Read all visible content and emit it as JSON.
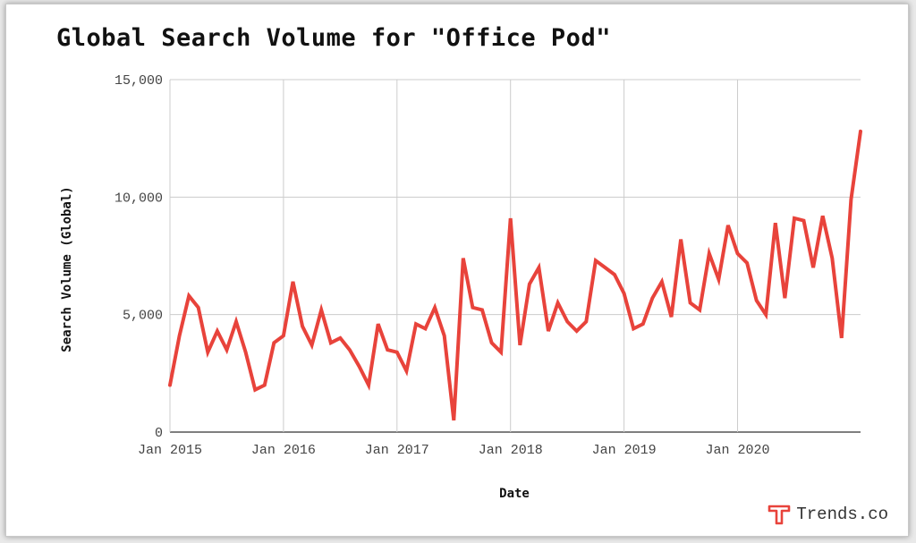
{
  "chart_data": {
    "type": "line",
    "title": "Global Search Volume for \"Office Pod\"",
    "xlabel": "Date",
    "ylabel": "Search Volume (Global)",
    "ylim": [
      0,
      15000
    ],
    "yticks": [
      0,
      5000,
      10000,
      15000
    ],
    "ytick_labels": [
      "0",
      "5,000",
      "10,000",
      "15,000"
    ],
    "xlim": [
      "2015-01",
      "2021-02"
    ],
    "xticks": [
      "2015-01",
      "2016-01",
      "2017-01",
      "2018-01",
      "2019-01",
      "2020-01"
    ],
    "xtick_labels": [
      "Jan 2015",
      "Jan 2016",
      "Jan 2017",
      "Jan 2018",
      "Jan 2019",
      "Jan 2020"
    ],
    "grid": true,
    "line_color": "#e8433b",
    "x": [
      "2015-01",
      "2015-02",
      "2015-03",
      "2015-04",
      "2015-05",
      "2015-06",
      "2015-07",
      "2015-08",
      "2015-09",
      "2015-10",
      "2015-11",
      "2015-12",
      "2016-01",
      "2016-02",
      "2016-03",
      "2016-04",
      "2016-05",
      "2016-06",
      "2016-07",
      "2016-08",
      "2016-09",
      "2016-10",
      "2016-11",
      "2016-12",
      "2017-01",
      "2017-02",
      "2017-03",
      "2017-04",
      "2017-05",
      "2017-06",
      "2017-07",
      "2017-08",
      "2017-09",
      "2017-10",
      "2017-11",
      "2017-12",
      "2018-01",
      "2018-02",
      "2018-03",
      "2018-04",
      "2018-05",
      "2018-06",
      "2018-07",
      "2018-08",
      "2018-09",
      "2018-10",
      "2018-11",
      "2018-12",
      "2019-01",
      "2019-02",
      "2019-03",
      "2019-04",
      "2019-05",
      "2019-06",
      "2019-07",
      "2019-08",
      "2019-09",
      "2019-10",
      "2019-11",
      "2019-12",
      "2020-01",
      "2020-02",
      "2020-03",
      "2020-04",
      "2020-05",
      "2020-06",
      "2020-07",
      "2020-08",
      "2020-09",
      "2020-10",
      "2020-11",
      "2020-12",
      "2021-01",
      "2021-02"
    ],
    "values": [
      2000,
      4100,
      5800,
      5300,
      3400,
      4300,
      3500,
      4700,
      3400,
      1800,
      2000,
      3800,
      4100,
      6400,
      4500,
      3700,
      5200,
      3800,
      4000,
      3500,
      2800,
      2000,
      4600,
      3500,
      3400,
      2600,
      4600,
      4400,
      5300,
      4100,
      500,
      7400,
      5300,
      5200,
      3800,
      3400,
      9100,
      3700,
      6300,
      7000,
      4300,
      5500,
      4700,
      4300,
      4700,
      7300,
      7000,
      6700,
      5900,
      4400,
      4600,
      5700,
      6400,
      4900,
      8200,
      5500,
      5200,
      7600,
      6500,
      8800,
      7600,
      7200,
      5600,
      5000,
      8900,
      5700,
      9100,
      9000,
      7000,
      9200,
      7400,
      4000,
      9900,
      12800
    ]
  },
  "brand": {
    "name": "Trends.co",
    "logo_icon": "trends-t-logo-icon",
    "logo_color": "#e8433b"
  }
}
